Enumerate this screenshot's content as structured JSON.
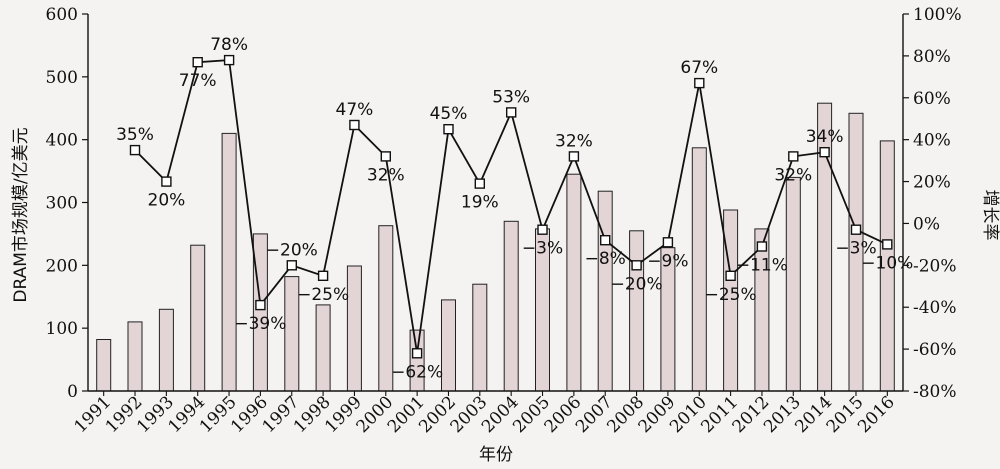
{
  "chart_data": {
    "type": "bar",
    "categories": [
      "1991",
      "1992",
      "1993",
      "1994",
      "1995",
      "1996",
      "1997",
      "1998",
      "1999",
      "2000",
      "2001",
      "2002",
      "2003",
      "2004",
      "2005",
      "2006",
      "2007",
      "2008",
      "2009",
      "2010",
      "2011",
      "2012",
      "2013",
      "2014",
      "2015",
      "2016"
    ],
    "xlabel": "年份",
    "ylabel": "DRAM市场规模/亿美元",
    "y2label": "增长率",
    "ylim": [
      0,
      600
    ],
    "y2lim": [
      -80,
      100
    ],
    "yticks": [
      0,
      100,
      200,
      300,
      400,
      500,
      600
    ],
    "y2ticks": [
      "-80%",
      "-60%",
      "-40%",
      "-20%",
      "0%",
      "20%",
      "40%",
      "60%",
      "80%",
      "100%"
    ],
    "grid": false,
    "series": [
      {
        "type": "bar",
        "axis": "left",
        "values": [
          82,
          110,
          130,
          232,
          410,
          250,
          182,
          137,
          199,
          263,
          97,
          145,
          170,
          270,
          258,
          345,
          318,
          255,
          228,
          387,
          288,
          258,
          340,
          458,
          442,
          398
        ]
      },
      {
        "type": "line",
        "axis": "right",
        "x": [
          "1992",
          "1993",
          "1994",
          "1995",
          "1996",
          "1997",
          "1998",
          "1999",
          "2000",
          "2001",
          "2002",
          "2003",
          "2004",
          "2005",
          "2006",
          "2007",
          "2008",
          "2009",
          "2010",
          "2011",
          "2012",
          "2013",
          "2014",
          "2015",
          "2016"
        ],
        "values": [
          35,
          20,
          77,
          78,
          -39,
          -20,
          -25,
          47,
          32,
          -62,
          45,
          19,
          53,
          -3,
          32,
          -8,
          -20,
          -9,
          67,
          -25,
          -11,
          32,
          34,
          -3,
          -10
        ],
        "labels": [
          "35%",
          "20%",
          "77%",
          "78%",
          "−39%",
          "−20%",
          "−25%",
          "47%",
          "32%",
          "−62%",
          "45%",
          "19%",
          "53%",
          "−3%",
          "32%",
          "−8%",
          "−20%",
          "−9%",
          "67%",
          "−25%",
          "−11%",
          "32%",
          "34%",
          "−3%",
          "−10%"
        ]
      }
    ]
  },
  "colors": {
    "bar_fill": "#e3d5d5",
    "bar_stroke": "#222222",
    "line": "#111111",
    "marker_fill": "#ffffff"
  }
}
